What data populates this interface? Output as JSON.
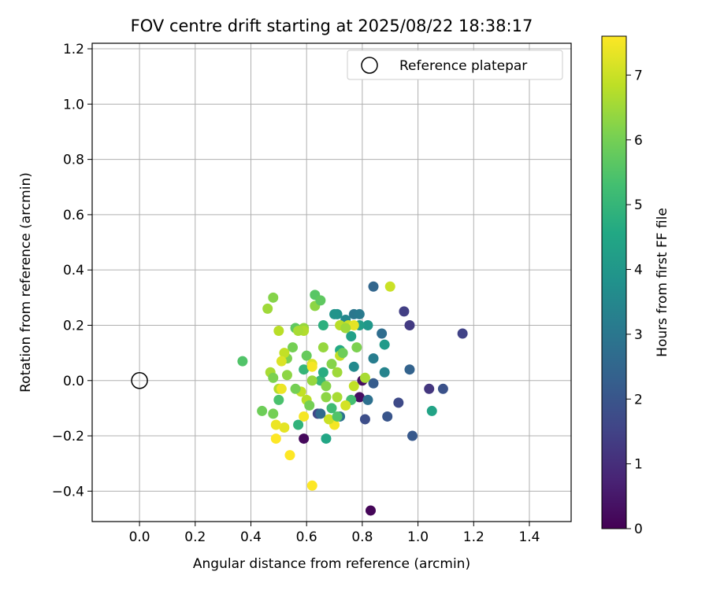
{
  "chart_data": {
    "type": "scatter",
    "title": "FOV centre drift starting at 2025/08/22 18:38:17",
    "xlabel": "Angular distance from reference (arcmin)",
    "ylabel": "Rotation from reference (arcmin)",
    "xlim": [
      -0.17,
      1.55
    ],
    "ylim": [
      -0.51,
      1.22
    ],
    "xticks": [
      0.0,
      0.2,
      0.4,
      0.6,
      0.8,
      1.0,
      1.2,
      1.4
    ],
    "xtick_labels": [
      "0.0",
      "0.2",
      "0.4",
      "0.6",
      "0.8",
      "1.0",
      "1.2",
      "1.4"
    ],
    "yticks": [
      -0.4,
      -0.2,
      0.0,
      0.2,
      0.4,
      0.6,
      0.8,
      1.0,
      1.2
    ],
    "ytick_labels": [
      "−0.4",
      "−0.2",
      "0.0",
      "0.2",
      "0.4",
      "0.6",
      "0.8",
      "1.0",
      "1.2"
    ],
    "grid": true,
    "legend": {
      "position": "top-right",
      "entries": [
        {
          "label": "Reference platepar",
          "marker": "open-circle"
        }
      ]
    },
    "reference_point": {
      "x": 0.0,
      "y": 0.0
    },
    "colorbar": {
      "label": "Hours from first FF file",
      "colormap": "viridis",
      "range": [
        0,
        7.6
      ],
      "ticks": [
        0,
        1,
        2,
        3,
        4,
        5,
        6,
        7
      ],
      "tick_labels": [
        "0",
        "1",
        "2",
        "3",
        "4",
        "5",
        "6",
        "7"
      ]
    },
    "points": [
      {
        "x": 0.83,
        "y": -0.47,
        "h": 0.1
      },
      {
        "x": 0.59,
        "y": -0.21,
        "h": 0.15
      },
      {
        "x": 0.8,
        "y": 0.0,
        "h": 0.3
      },
      {
        "x": 0.79,
        "y": -0.06,
        "h": 0.3
      },
      {
        "x": 1.04,
        "y": -0.03,
        "h": 1.2
      },
      {
        "x": 0.97,
        "y": 0.2,
        "h": 1.3
      },
      {
        "x": 0.95,
        "y": 0.25,
        "h": 1.4
      },
      {
        "x": 1.16,
        "y": 0.17,
        "h": 1.5
      },
      {
        "x": 0.64,
        "y": -0.12,
        "h": 1.6
      },
      {
        "x": 0.93,
        "y": -0.08,
        "h": 1.7
      },
      {
        "x": 0.81,
        "y": -0.14,
        "h": 1.8
      },
      {
        "x": 1.09,
        "y": -0.03,
        "h": 1.9
      },
      {
        "x": 0.89,
        "y": -0.13,
        "h": 2.0
      },
      {
        "x": 0.98,
        "y": -0.2,
        "h": 2.1
      },
      {
        "x": 0.84,
        "y": -0.01,
        "h": 2.2
      },
      {
        "x": 0.97,
        "y": 0.04,
        "h": 2.4
      },
      {
        "x": 0.84,
        "y": 0.34,
        "h": 2.5
      },
      {
        "x": 0.87,
        "y": 0.17,
        "h": 2.7
      },
      {
        "x": 0.82,
        "y": -0.07,
        "h": 2.8
      },
      {
        "x": 0.72,
        "y": -0.13,
        "h": 2.9
      },
      {
        "x": 0.77,
        "y": 0.24,
        "h": 3.0
      },
      {
        "x": 0.79,
        "y": 0.24,
        "h": 3.1
      },
      {
        "x": 0.84,
        "y": 0.08,
        "h": 3.2
      },
      {
        "x": 0.88,
        "y": 0.03,
        "h": 3.4
      },
      {
        "x": 0.74,
        "y": 0.22,
        "h": 3.5
      },
      {
        "x": 0.77,
        "y": 0.05,
        "h": 3.6
      },
      {
        "x": 0.71,
        "y": 0.24,
        "h": 3.8
      },
      {
        "x": 0.82,
        "y": 0.2,
        "h": 4.0
      },
      {
        "x": 0.88,
        "y": 0.13,
        "h": 4.1
      },
      {
        "x": 0.79,
        "y": 0.2,
        "h": 4.2
      },
      {
        "x": 0.76,
        "y": 0.16,
        "h": 4.3
      },
      {
        "x": 1.05,
        "y": -0.11,
        "h": 4.4
      },
      {
        "x": 0.67,
        "y": -0.21,
        "h": 4.5
      },
      {
        "x": 0.72,
        "y": 0.11,
        "h": 4.6
      },
      {
        "x": 0.66,
        "y": 0.2,
        "h": 4.8
      },
      {
        "x": 0.57,
        "y": -0.16,
        "h": 4.9
      },
      {
        "x": 0.59,
        "y": 0.04,
        "h": 5.0
      },
      {
        "x": 0.65,
        "y": 0.0,
        "h": 5.1
      },
      {
        "x": 0.69,
        "y": -0.1,
        "h": 5.2
      },
      {
        "x": 0.76,
        "y": -0.07,
        "h": 5.3
      },
      {
        "x": 0.5,
        "y": -0.07,
        "h": 5.4
      },
      {
        "x": 0.37,
        "y": 0.07,
        "h": 5.5
      },
      {
        "x": 0.63,
        "y": 0.31,
        "h": 5.6
      },
      {
        "x": 0.56,
        "y": 0.19,
        "h": 5.7
      },
      {
        "x": 0.6,
        "y": 0.09,
        "h": 5.8
      },
      {
        "x": 0.44,
        "y": -0.11,
        "h": 5.9
      },
      {
        "x": 0.48,
        "y": -0.12,
        "h": 6.0
      },
      {
        "x": 0.53,
        "y": 0.08,
        "h": 6.1
      },
      {
        "x": 0.48,
        "y": 0.3,
        "h": 6.2
      },
      {
        "x": 0.63,
        "y": 0.27,
        "h": 6.3
      },
      {
        "x": 0.59,
        "y": 0.19,
        "h": 6.4
      },
      {
        "x": 0.55,
        "y": 0.12,
        "h": 6.0
      },
      {
        "x": 0.67,
        "y": -0.02,
        "h": 6.2
      },
      {
        "x": 0.71,
        "y": 0.03,
        "h": 6.5
      },
      {
        "x": 0.71,
        "y": -0.06,
        "h": 6.6
      },
      {
        "x": 0.46,
        "y": 0.26,
        "h": 6.5
      },
      {
        "x": 0.5,
        "y": -0.03,
        "h": 6.7
      },
      {
        "x": 0.72,
        "y": 0.2,
        "h": 6.8
      },
      {
        "x": 0.66,
        "y": 0.12,
        "h": 6.4
      },
      {
        "x": 0.58,
        "y": -0.04,
        "h": 6.9
      },
      {
        "x": 0.9,
        "y": 0.34,
        "h": 7.0
      },
      {
        "x": 0.53,
        "y": 0.02,
        "h": 6.3
      },
      {
        "x": 0.75,
        "y": 0.2,
        "h": 7.0
      },
      {
        "x": 0.62,
        "y": 0.06,
        "h": 7.2
      },
      {
        "x": 0.74,
        "y": -0.09,
        "h": 7.1
      },
      {
        "x": 0.77,
        "y": 0.2,
        "h": 7.3
      },
      {
        "x": 0.52,
        "y": 0.1,
        "h": 6.9
      },
      {
        "x": 0.47,
        "y": 0.03,
        "h": 6.6
      },
      {
        "x": 0.6,
        "y": -0.07,
        "h": 6.8
      },
      {
        "x": 0.56,
        "y": -0.03,
        "h": 6.0
      },
      {
        "x": 0.52,
        "y": -0.17,
        "h": 7.3
      },
      {
        "x": 0.62,
        "y": 0.05,
        "h": 7.5
      },
      {
        "x": 0.49,
        "y": -0.16,
        "h": 7.4
      },
      {
        "x": 0.59,
        "y": -0.13,
        "h": 7.5
      },
      {
        "x": 0.51,
        "y": -0.03,
        "h": 7.4
      },
      {
        "x": 0.54,
        "y": -0.27,
        "h": 7.6
      },
      {
        "x": 0.62,
        "y": -0.38,
        "h": 7.6
      },
      {
        "x": 0.49,
        "y": -0.21,
        "h": 7.6
      },
      {
        "x": 0.7,
        "y": -0.16,
        "h": 7.5
      },
      {
        "x": 0.51,
        "y": 0.07,
        "h": 7.2
      },
      {
        "x": 0.68,
        "y": -0.14,
        "h": 7.0
      },
      {
        "x": 0.72,
        "y": 0.09,
        "h": 6.9
      },
      {
        "x": 0.59,
        "y": 0.18,
        "h": 6.7
      },
      {
        "x": 0.5,
        "y": 0.18,
        "h": 6.8
      },
      {
        "x": 0.73,
        "y": 0.1,
        "h": 5.9
      },
      {
        "x": 0.69,
        "y": 0.06,
        "h": 6.2
      },
      {
        "x": 0.65,
        "y": 0.29,
        "h": 5.7
      },
      {
        "x": 0.62,
        "y": 0.0,
        "h": 6.4
      },
      {
        "x": 0.78,
        "y": 0.12,
        "h": 6.1
      },
      {
        "x": 0.74,
        "y": 0.19,
        "h": 6.5
      },
      {
        "x": 0.67,
        "y": -0.06,
        "h": 6.3
      },
      {
        "x": 0.77,
        "y": -0.02,
        "h": 6.9
      },
      {
        "x": 0.48,
        "y": 0.01,
        "h": 6.1
      },
      {
        "x": 0.57,
        "y": 0.18,
        "h": 6.6
      },
      {
        "x": 0.61,
        "y": -0.09,
        "h": 6.0
      },
      {
        "x": 0.71,
        "y": -0.13,
        "h": 5.5
      },
      {
        "x": 0.65,
        "y": -0.12,
        "h": 2.6
      },
      {
        "x": 0.66,
        "y": 0.03,
        "h": 4.7
      },
      {
        "x": 0.7,
        "y": 0.24,
        "h": 3.9
      },
      {
        "x": 0.81,
        "y": 0.01,
        "h": 6.6
      }
    ]
  }
}
